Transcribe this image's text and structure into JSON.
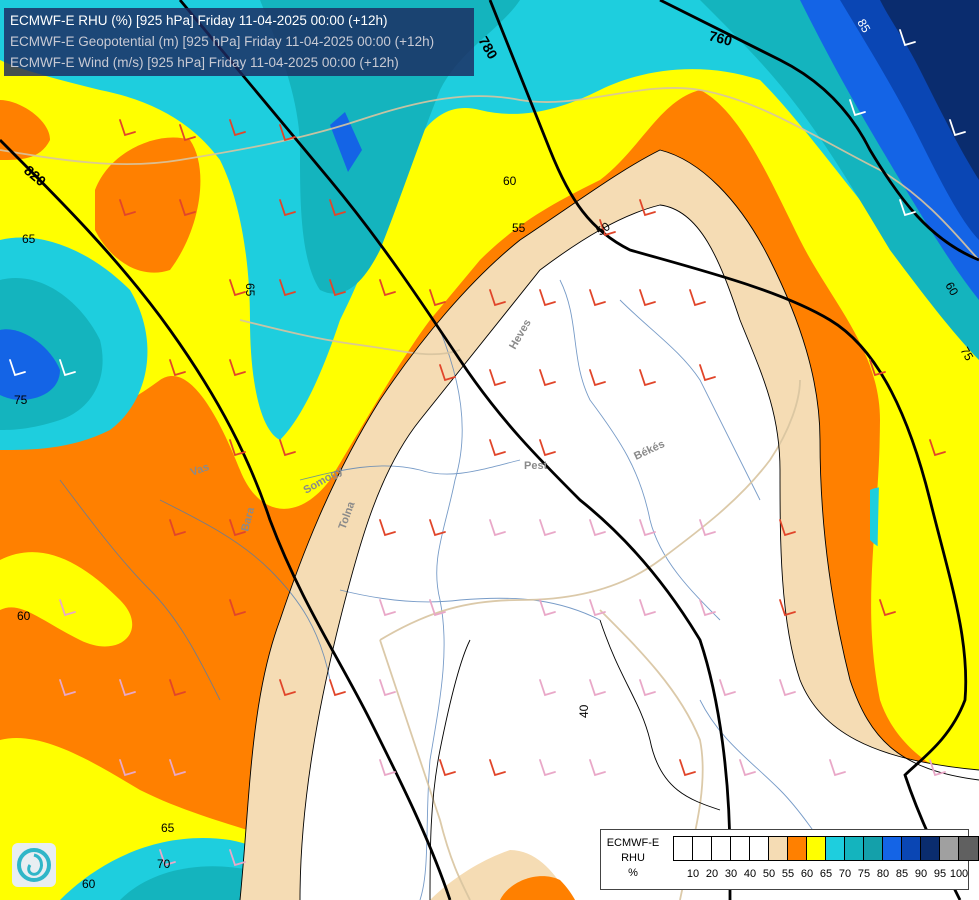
{
  "titles": [
    "ECMWF-E RHU (%) [925 hPa] Friday 11-04-2025 00:00 (+12h)",
    "ECMWF-E Geopotential (m) [925 hPa] Friday 11-04-2025 00:00 (+12h)",
    "ECMWF-E Wind (m/s) [925 hPa] Friday 11-04-2025 00:00 (+12h)"
  ],
  "legend": {
    "name": "ECMWF-E",
    "field": "RHU",
    "unit": "%",
    "ticks": [
      "10",
      "20",
      "30",
      "40",
      "50",
      "55",
      "60",
      "65",
      "70",
      "75",
      "80",
      "85",
      "90",
      "95",
      "100"
    ],
    "colors": [
      "#ffffff",
      "#ffffff",
      "#ffffff",
      "#ffffff",
      "#ffffff",
      "#f5dcb4",
      "#ff8000",
      "#ffff00",
      "#1ecede",
      "#14b4be",
      "#14a0aa",
      "#1464e6",
      "#0a46b4",
      "#0a2c6e",
      "#a0a0a0",
      "#606060"
    ]
  },
  "rhu_labels": [
    "40",
    "50",
    "55",
    "60",
    "60",
    "60",
    "60",
    "65",
    "65",
    "65",
    "70",
    "75",
    "75",
    "85"
  ],
  "geopotential_labels": [
    "760",
    "780",
    "820"
  ],
  "place_labels": [
    "Heves",
    "Pest",
    "Békés",
    "Tolna",
    "Somogy",
    "Vas",
    "Bara"
  ]
}
